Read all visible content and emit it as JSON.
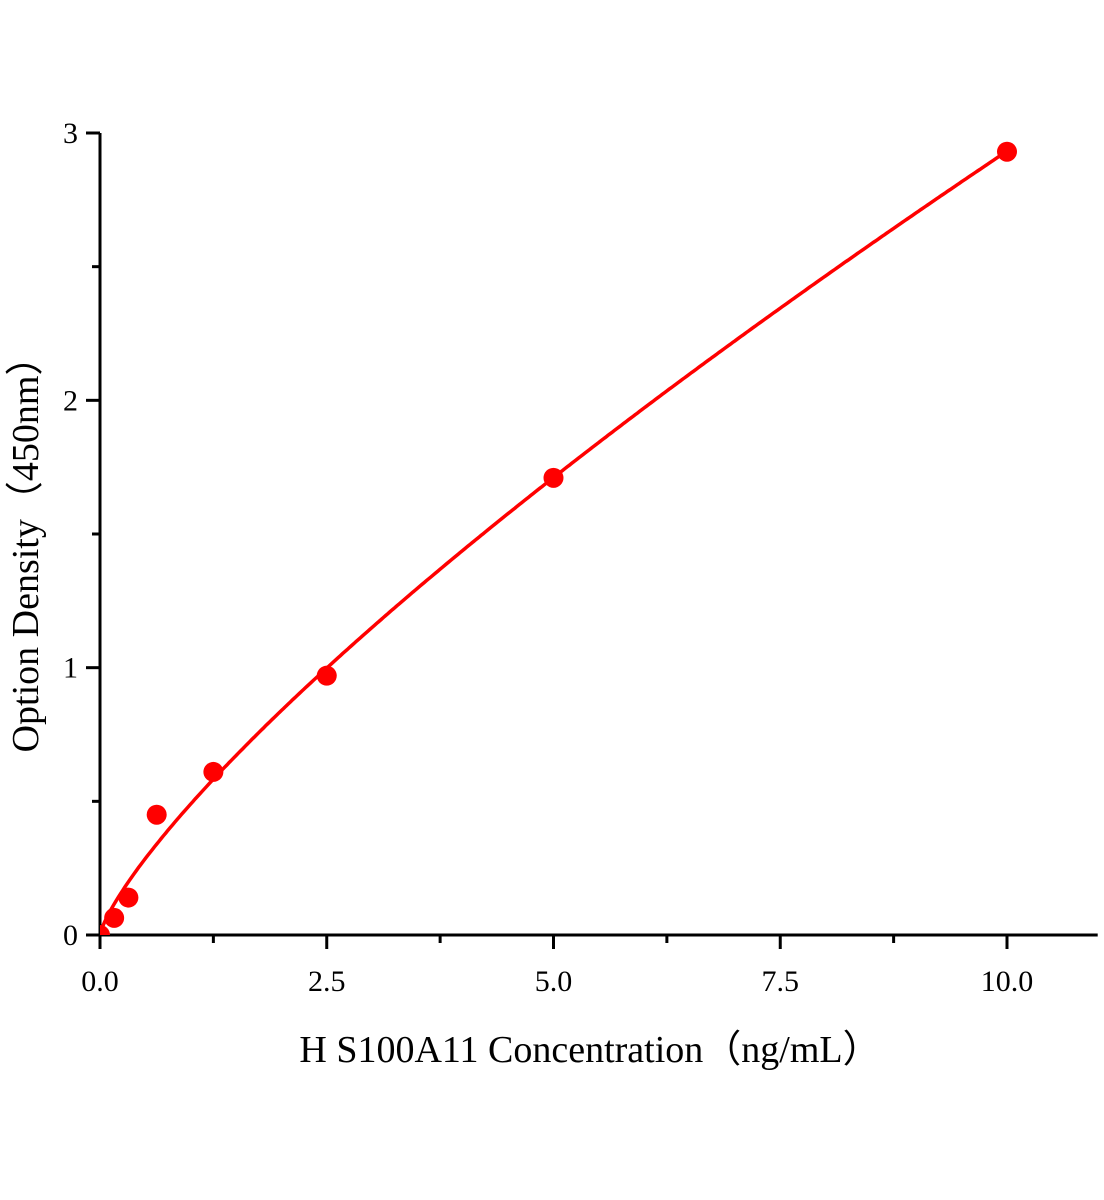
{
  "chart_data": {
    "type": "scatter",
    "title": "",
    "xlabel": "H S100A11 Concentration（ng/mL）",
    "ylabel": "Option Density（450nm）",
    "xlim": [
      0,
      11
    ],
    "ylim": [
      0,
      3
    ],
    "x_ticks": [
      0,
      2.5,
      5,
      7.5,
      10
    ],
    "x_tick_labels": [
      "0.0",
      "2.5",
      "5.0",
      "7.5",
      "10.0"
    ],
    "y_ticks": [
      0,
      1,
      2,
      3
    ],
    "y_tick_labels": [
      "0",
      "1",
      "2",
      "3"
    ],
    "grid": false,
    "series": [
      {
        "x": [
          0,
          0.156,
          0.313,
          0.625,
          1.25,
          2.5,
          5,
          10
        ],
        "y": [
          0.0,
          0.064,
          0.14,
          0.45,
          0.61,
          0.97,
          1.71,
          2.93
        ],
        "marker": "circle",
        "color": "#ff0000"
      }
    ],
    "fit_curve": {
      "model": "power",
      "a": 0.49,
      "b": 0.777,
      "color": "#ff0000"
    }
  }
}
